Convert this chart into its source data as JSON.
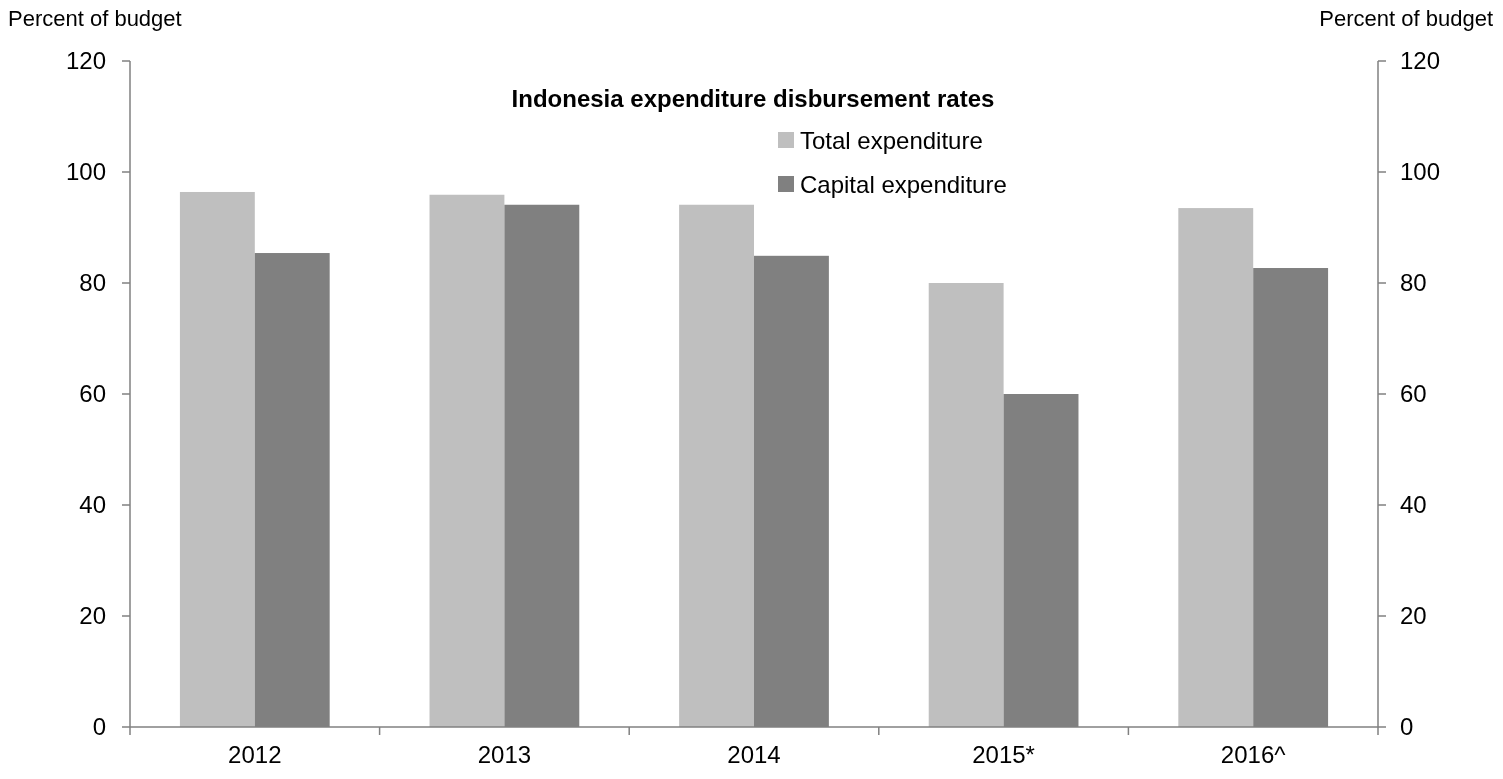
{
  "chart_data": {
    "type": "bar",
    "title": "Indonesia expenditure disbursement rates",
    "ylabel": "Percent of budget",
    "y2label": "Percent of budget",
    "categories": [
      "2012",
      "2013",
      "2014",
      "2015*",
      "2016^"
    ],
    "series": [
      {
        "name": "Total expenditure",
        "color": "#bfbfbf",
        "values": [
          96.4,
          95.9,
          94.1,
          80.0,
          93.5
        ]
      },
      {
        "name": "Capital expenditure",
        "color": "#808080",
        "values": [
          85.4,
          94.1,
          84.9,
          60.0,
          82.7
        ]
      }
    ],
    "ylim": [
      0,
      120
    ],
    "yticks": [
      0,
      20,
      40,
      60,
      80,
      100,
      120
    ],
    "y2lim": [
      0,
      120
    ],
    "y2ticks": [
      0,
      20,
      40,
      60,
      80,
      100,
      120
    ],
    "grid": false,
    "legend": "top right"
  }
}
